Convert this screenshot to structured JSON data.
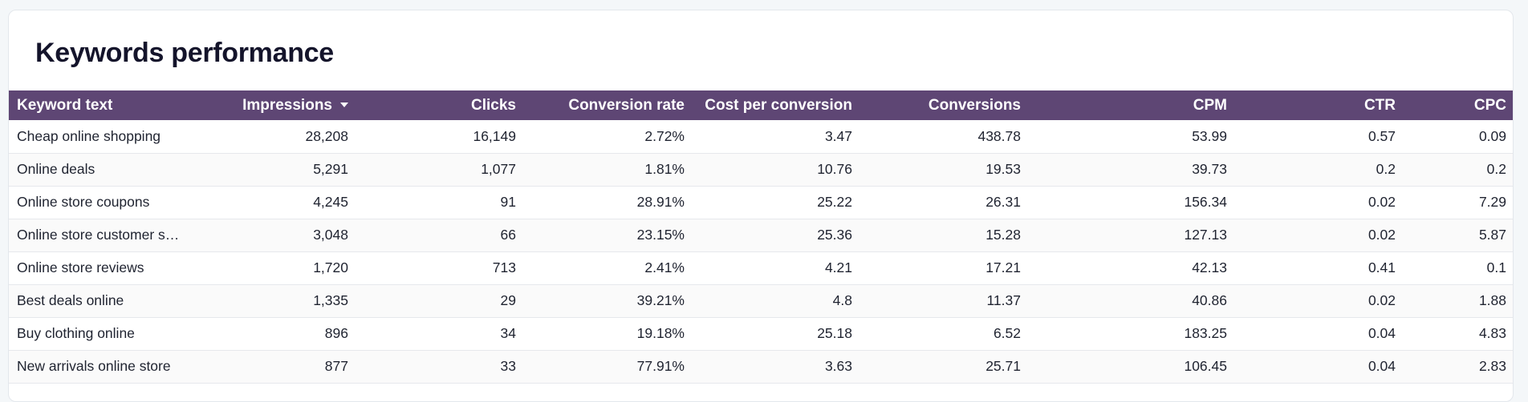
{
  "title": "Keywords performance",
  "columns": [
    "Keyword text",
    "Impressions",
    "Clicks",
    "Conversion rate",
    "Cost per conversion",
    "Conversions",
    "CPM",
    "CTR",
    "CPC"
  ],
  "sort": {
    "column": "Impressions",
    "direction": "descending"
  },
  "rows": [
    [
      "Cheap online shopping",
      "28,208",
      "16,149",
      "2.72%",
      "3.47",
      "438.78",
      "53.99",
      "0.57",
      "0.09"
    ],
    [
      "Online deals",
      "5,291",
      "1,077",
      "1.81%",
      "10.76",
      "19.53",
      "39.73",
      "0.2",
      "0.2"
    ],
    [
      "Online store coupons",
      "4,245",
      "91",
      "28.91%",
      "25.22",
      "26.31",
      "156.34",
      "0.02",
      "7.29"
    ],
    [
      "Online store customer serv…",
      "3,048",
      "66",
      "23.15%",
      "25.36",
      "15.28",
      "127.13",
      "0.02",
      "5.87"
    ],
    [
      "Online store reviews",
      "1,720",
      "713",
      "2.41%",
      "4.21",
      "17.21",
      "42.13",
      "0.41",
      "0.1"
    ],
    [
      "Best deals online",
      "1,335",
      "29",
      "39.21%",
      "4.8",
      "11.37",
      "40.86",
      "0.02",
      "1.88"
    ],
    [
      "Buy clothing online",
      "896",
      "34",
      "19.18%",
      "25.18",
      "6.52",
      "183.25",
      "0.04",
      "4.83"
    ],
    [
      "New arrivals online store",
      "877",
      "33",
      "77.91%",
      "3.63",
      "25.71",
      "106.45",
      "0.04",
      "2.83"
    ]
  ],
  "colors": {
    "header_bg": "#5e4674",
    "header_text": "#ffffff",
    "title_text": "#14142b"
  }
}
